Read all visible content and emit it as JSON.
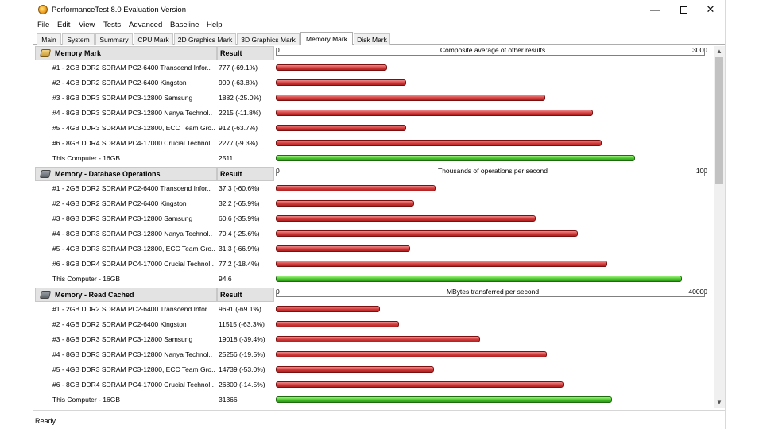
{
  "window": {
    "title": "PerformanceTest 8.0 Evaluation Version"
  },
  "menu": [
    "File",
    "Edit",
    "View",
    "Tests",
    "Advanced",
    "Baseline",
    "Help"
  ],
  "tabs": [
    "Main",
    "System",
    "Summary",
    "CPU Mark",
    "2D Graphics Mark",
    "3D Graphics Mark",
    "Memory Mark",
    "Disk Mark"
  ],
  "active_tab": "Memory Mark",
  "result_header": "Result",
  "sections": [
    {
      "title": "Memory Mark",
      "axis_title": "Composite average of other results",
      "axis_min": "0",
      "axis_max": "3000",
      "max_value": 3000,
      "rows": [
        {
          "name": "#1 - 2GB DDR2 SDRAM PC2-6400 Transcend Infor..",
          "result": "777 (-69.1%)",
          "value": 777,
          "type": "red"
        },
        {
          "name": "#2 - 4GB DDR2 SDRAM PC2-6400 Kingston",
          "result": "909 (-63.8%)",
          "value": 909,
          "type": "red"
        },
        {
          "name": "#3 - 8GB DDR3 SDRAM PC3-12800 Samsung",
          "result": "1882 (-25.0%)",
          "value": 1882,
          "type": "red"
        },
        {
          "name": "#4 - 8GB DDR3 SDRAM PC3-12800 Nanya Technol..",
          "result": "2215 (-11.8%)",
          "value": 2215,
          "type": "red"
        },
        {
          "name": "#5 - 4GB DDR3 SDRAM PC3-12800, ECC Team Gro..",
          "result": "912 (-63.7%)",
          "value": 912,
          "type": "red"
        },
        {
          "name": "#6 - 8GB DDR4 SDRAM PC4-17000 Crucial Technol..",
          "result": "2277 (-9.3%)",
          "value": 2277,
          "type": "red"
        },
        {
          "name": "This Computer - 16GB",
          "result": "2511",
          "value": 2511,
          "type": "green"
        }
      ]
    },
    {
      "title": "Memory - Database Operations",
      "axis_title": "Thousands of operations per second",
      "axis_min": "0",
      "axis_max": "100",
      "max_value": 100,
      "rows": [
        {
          "name": "#1 - 2GB DDR2 SDRAM PC2-6400 Transcend Infor..",
          "result": "37.3 (-60.6%)",
          "value": 37.3,
          "type": "red"
        },
        {
          "name": "#2 - 4GB DDR2 SDRAM PC2-6400 Kingston",
          "result": "32.2 (-65.9%)",
          "value": 32.2,
          "type": "red"
        },
        {
          "name": "#3 - 8GB DDR3 SDRAM PC3-12800 Samsung",
          "result": "60.6 (-35.9%)",
          "value": 60.6,
          "type": "red"
        },
        {
          "name": "#4 - 8GB DDR3 SDRAM PC3-12800 Nanya Technol..",
          "result": "70.4 (-25.6%)",
          "value": 70.4,
          "type": "red"
        },
        {
          "name": "#5 - 4GB DDR3 SDRAM PC3-12800, ECC Team Gro..",
          "result": "31.3 (-66.9%)",
          "value": 31.3,
          "type": "red"
        },
        {
          "name": "#6 - 8GB DDR4 SDRAM PC4-17000 Crucial Technol..",
          "result": "77.2 (-18.4%)",
          "value": 77.2,
          "type": "red"
        },
        {
          "name": "This Computer - 16GB",
          "result": "94.6",
          "value": 94.6,
          "type": "green"
        }
      ]
    },
    {
      "title": "Memory - Read Cached",
      "axis_title": "MBytes transferred per second",
      "axis_min": "0",
      "axis_max": "40000",
      "max_value": 40000,
      "rows": [
        {
          "name": "#1 - 2GB DDR2 SDRAM PC2-6400 Transcend Infor..",
          "result": "9691 (-69.1%)",
          "value": 9691,
          "type": "red"
        },
        {
          "name": "#2 - 4GB DDR2 SDRAM PC2-6400 Kingston",
          "result": "11515 (-63.3%)",
          "value": 11515,
          "type": "red"
        },
        {
          "name": "#3 - 8GB DDR3 SDRAM PC3-12800 Samsung",
          "result": "19018 (-39.4%)",
          "value": 19018,
          "type": "red"
        },
        {
          "name": "#4 - 8GB DDR3 SDRAM PC3-12800 Nanya Technol..",
          "result": "25256 (-19.5%)",
          "value": 25256,
          "type": "red"
        },
        {
          "name": "#5 - 4GB DDR3 SDRAM PC3-12800, ECC Team Gro..",
          "result": "14739 (-53.0%)",
          "value": 14739,
          "type": "red"
        },
        {
          "name": "#6 - 8GB DDR4 SDRAM PC4-17000 Crucial Technol..",
          "result": "26809 (-14.5%)",
          "value": 26809,
          "type": "red"
        },
        {
          "name": "This Computer - 16GB",
          "result": "31366",
          "value": 31366,
          "type": "green"
        }
      ]
    }
  ],
  "status": "Ready",
  "colors": {
    "bar_red": "#d23b3b",
    "bar_green": "#48c12c",
    "header_bg": "#e3e3e3"
  },
  "icons": {
    "app": "performancetest-icon",
    "memory": "memory-chip-icon",
    "scroll_up": "chevron-up-icon",
    "scroll_down": "chevron-down-icon"
  }
}
